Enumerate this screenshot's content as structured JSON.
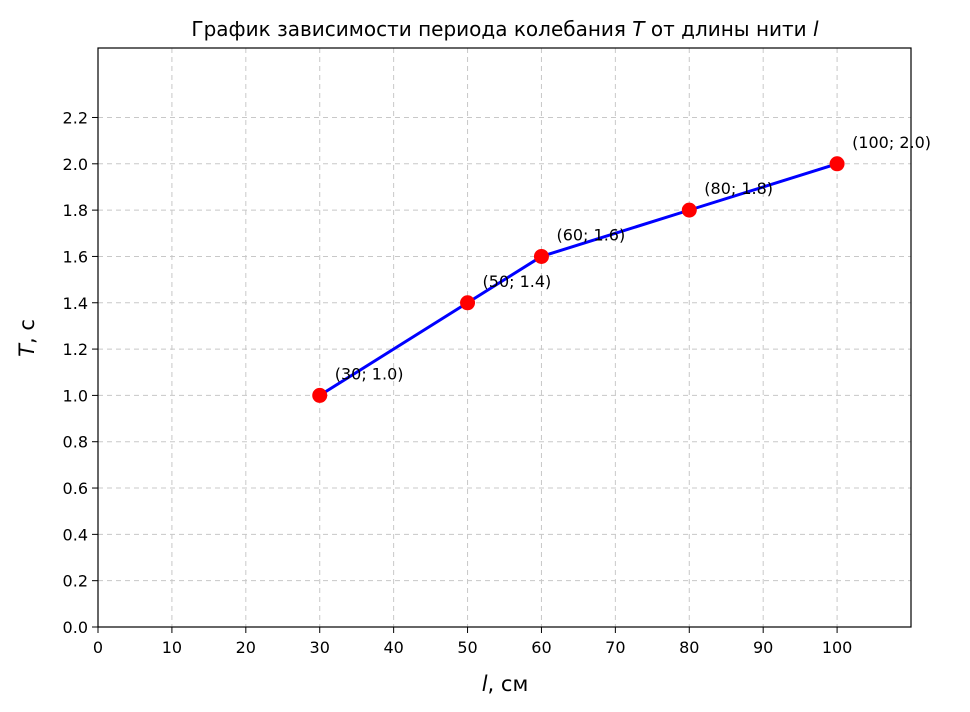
{
  "chart_data": {
    "type": "line",
    "title_prefix": "График зависимости периода колебания ",
    "title_var1": "T",
    "title_mid": " от длины нити ",
    "title_var2": "l",
    "xlabel_var": "l",
    "xlabel_unit": ", см",
    "ylabel_var": "T",
    "ylabel_unit": ", с",
    "xlim": [
      0,
      110
    ],
    "ylim": [
      0,
      2.5
    ],
    "xticks": [
      0,
      10,
      20,
      30,
      40,
      50,
      60,
      70,
      80,
      90,
      100
    ],
    "yticks": [
      0.0,
      0.2,
      0.4,
      0.6,
      0.8,
      1.0,
      1.2,
      1.4,
      1.6,
      1.8,
      2.0,
      2.2
    ],
    "grid": true,
    "line_color": "#0000ff",
    "marker_color": "#ff0000",
    "series": [
      {
        "x": [
          30,
          50,
          60,
          80,
          100
        ],
        "y": [
          1.0,
          1.4,
          1.6,
          1.8,
          2.0
        ]
      }
    ],
    "annotations": [
      "(30; 1.0)",
      "(50; 1.4)",
      "(60; 1.6)",
      "(80; 1.8)",
      "(100; 2.0)"
    ]
  }
}
